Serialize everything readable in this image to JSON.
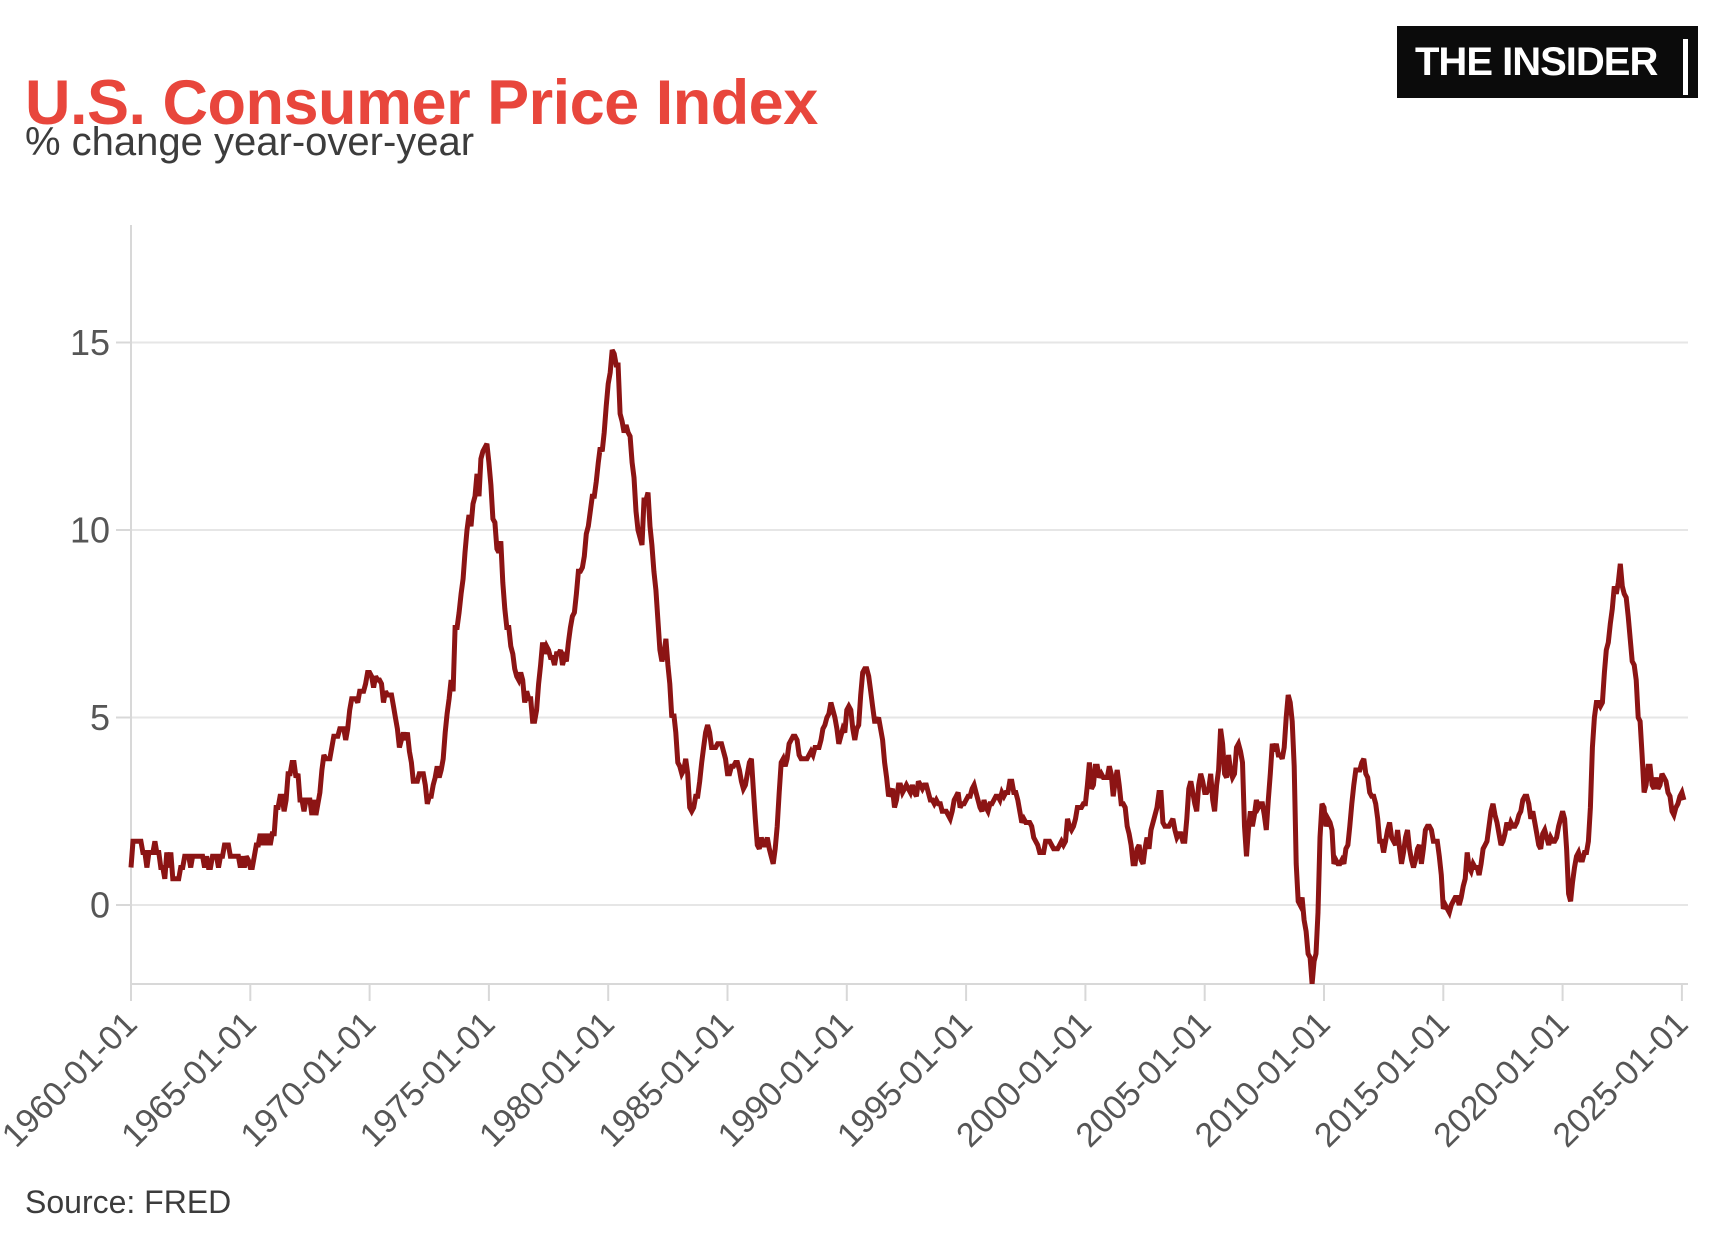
{
  "header": {
    "title": "U.S. Consumer Price Index",
    "subtitle": "% change year-over-year",
    "logo_text": "THE INSIDER"
  },
  "footer": {
    "source": "Source: FRED"
  },
  "colors": {
    "title": "#e8463c",
    "text": "#3c3c3c",
    "tick_label": "#565656",
    "line": "#8c1414",
    "grid": "#e6e6e6",
    "axis": "#d8d8d8",
    "logo_bg": "#0b0b0b",
    "logo_text": "#ffffff",
    "background": "#ffffff"
  },
  "chart_data": {
    "type": "line",
    "title": "U.S. Consumer Price Index",
    "subtitle": "% change year-over-year",
    "series_name": "CPI, % change year-over-year",
    "source": "FRED",
    "frequency": "monthly",
    "x_start": "1960-01-01",
    "x_end": "2025-02-01",
    "x_range": [
      "1960-01-01",
      "2025-02-01"
    ],
    "y_range": [
      -2.1,
      18.1
    ],
    "y_ticks": [
      0,
      5,
      10,
      15
    ],
    "x_tick_labels": [
      "1960-01-01",
      "1965-01-01",
      "1970-01-01",
      "1975-01-01",
      "1980-01-01",
      "1985-01-01",
      "1990-01-01",
      "1995-01-01",
      "2000-01-01",
      "2005-01-01",
      "2010-01-01",
      "2015-01-01",
      "2020-01-01",
      "2025-01-01"
    ],
    "x_tick_step_years": 5,
    "grid": "horizontal-only",
    "legend": "none",
    "values": [
      1.0,
      1.7,
      1.7,
      1.7,
      1.7,
      1.7,
      1.4,
      1.4,
      1.0,
      1.4,
      1.4,
      1.4,
      1.7,
      1.4,
      1.4,
      1.0,
      1.0,
      0.7,
      1.4,
      1.0,
      1.4,
      0.7,
      0.7,
      0.7,
      0.7,
      1.0,
      1.0,
      1.3,
      1.3,
      1.3,
      1.0,
      1.3,
      1.3,
      1.3,
      1.3,
      1.3,
      1.3,
      1.0,
      1.3,
      1.0,
      1.0,
      1.3,
      1.3,
      1.3,
      1.0,
      1.3,
      1.3,
      1.6,
      1.6,
      1.6,
      1.3,
      1.3,
      1.3,
      1.3,
      1.3,
      1.0,
      1.3,
      1.0,
      1.3,
      1.2,
      1.0,
      1.0,
      1.3,
      1.6,
      1.6,
      1.9,
      1.6,
      1.9,
      1.6,
      1.9,
      1.6,
      1.9,
      1.9,
      2.6,
      2.6,
      2.9,
      2.9,
      2.5,
      2.8,
      3.5,
      3.5,
      3.8,
      3.8,
      3.4,
      3.5,
      2.8,
      2.8,
      2.5,
      2.8,
      2.8,
      2.8,
      2.4,
      2.8,
      2.4,
      2.7,
      3.0,
      3.6,
      4.0,
      3.9,
      3.9,
      3.9,
      4.2,
      4.5,
      4.5,
      4.5,
      4.7,
      4.7,
      4.7,
      4.4,
      4.7,
      5.2,
      5.5,
      5.5,
      5.5,
      5.4,
      5.7,
      5.7,
      5.7,
      5.9,
      6.2,
      6.2,
      6.1,
      5.8,
      6.1,
      6.0,
      6.0,
      5.9,
      5.4,
      5.7,
      5.6,
      5.6,
      5.6,
      5.3,
      5.0,
      4.7,
      4.2,
      4.4,
      4.6,
      4.4,
      4.6,
      4.1,
      3.8,
      3.3,
      3.3,
      3.3,
      3.5,
      3.5,
      3.5,
      3.2,
      2.7,
      2.9,
      2.9,
      3.2,
      3.4,
      3.7,
      3.4,
      3.6,
      3.9,
      4.6,
      5.1,
      5.5,
      6.0,
      5.7,
      7.4,
      7.4,
      7.8,
      8.3,
      8.7,
      9.4,
      10.0,
      10.4,
      10.1,
      10.7,
      10.9,
      11.5,
      10.9,
      11.9,
      12.1,
      12.2,
      12.3,
      11.8,
      11.2,
      10.3,
      10.2,
      9.5,
      9.4,
      9.7,
      8.6,
      7.9,
      7.4,
      7.4,
      6.9,
      6.7,
      6.3,
      6.1,
      6.0,
      6.2,
      6.0,
      5.4,
      5.7,
      5.5,
      5.5,
      4.9,
      4.9,
      5.2,
      5.9,
      6.4,
      7.0,
      6.7,
      6.9,
      6.8,
      6.6,
      6.6,
      6.4,
      6.7,
      6.7,
      6.8,
      6.4,
      6.6,
      6.5,
      7.0,
      7.4,
      7.7,
      7.8,
      8.3,
      8.9,
      8.9,
      9.0,
      9.3,
      9.9,
      10.1,
      10.5,
      10.9,
      10.9,
      11.3,
      11.8,
      12.2,
      12.1,
      12.6,
      13.3,
      13.9,
      14.2,
      14.8,
      14.7,
      14.4,
      14.4,
      13.1,
      12.9,
      12.6,
      12.8,
      12.6,
      12.5,
      11.8,
      11.4,
      10.5,
      10.0,
      9.8,
      9.6,
      10.8,
      10.8,
      11.0,
      10.1,
      9.6,
      8.9,
      8.4,
      7.6,
      6.8,
      6.5,
      6.7,
      7.1,
      6.4,
      5.9,
      5.0,
      5.1,
      4.6,
      3.8,
      3.7,
      3.5,
      3.6,
      3.9,
      3.5,
      2.6,
      2.5,
      2.6,
      2.9,
      2.9,
      3.3,
      3.8,
      4.2,
      4.6,
      4.8,
      4.6,
      4.2,
      4.2,
      4.2,
      4.3,
      4.3,
      4.3,
      4.1,
      3.9,
      3.5,
      3.5,
      3.7,
      3.7,
      3.8,
      3.8,
      3.6,
      3.3,
      3.1,
      3.2,
      3.5,
      3.8,
      3.9,
      3.1,
      2.3,
      1.6,
      1.5,
      1.8,
      1.6,
      1.6,
      1.8,
      1.5,
      1.3,
      1.1,
      1.5,
      2.1,
      3.0,
      3.8,
      3.9,
      3.7,
      3.9,
      4.3,
      4.4,
      4.5,
      4.5,
      4.4,
      4.0,
      3.9,
      3.9,
      3.9,
      3.9,
      4.0,
      4.1,
      4.0,
      4.2,
      4.2,
      4.2,
      4.4,
      4.7,
      4.8,
      5.0,
      5.1,
      5.4,
      5.2,
      5.0,
      4.7,
      4.3,
      4.5,
      4.7,
      4.6,
      5.2,
      5.3,
      5.2,
      4.7,
      4.4,
      4.7,
      4.8,
      5.6,
      6.2,
      6.3,
      6.3,
      6.1,
      5.7,
      5.3,
      4.9,
      4.9,
      5.0,
      4.7,
      4.4,
      3.8,
      3.4,
      2.9,
      3.0,
      3.1,
      2.6,
      2.8,
      3.2,
      3.2,
      3.0,
      3.1,
      3.2,
      3.1,
      3.0,
      3.2,
      3.0,
      2.9,
      3.3,
      3.2,
      3.1,
      3.2,
      3.2,
      3.0,
      2.8,
      2.8,
      2.7,
      2.8,
      2.7,
      2.7,
      2.5,
      2.5,
      2.5,
      2.4,
      2.3,
      2.5,
      2.8,
      2.9,
      3.0,
      2.6,
      2.7,
      2.7,
      2.8,
      2.9,
      2.9,
      3.1,
      3.2,
      3.0,
      2.8,
      2.6,
      2.5,
      2.8,
      2.6,
      2.5,
      2.7,
      2.7,
      2.8,
      2.9,
      2.9,
      2.8,
      3.0,
      2.9,
      3.0,
      3.0,
      3.3,
      3.3,
      3.0,
      3.0,
      2.8,
      2.5,
      2.2,
      2.3,
      2.2,
      2.2,
      2.2,
      2.1,
      1.8,
      1.7,
      1.6,
      1.4,
      1.4,
      1.4,
      1.7,
      1.7,
      1.7,
      1.6,
      1.5,
      1.5,
      1.5,
      1.6,
      1.7,
      1.6,
      1.7,
      2.3,
      2.1,
      2.0,
      2.1,
      2.3,
      2.6,
      2.6,
      2.6,
      2.7,
      2.7,
      3.2,
      3.8,
      3.1,
      3.2,
      3.7,
      3.7,
      3.4,
      3.5,
      3.4,
      3.4,
      3.4,
      3.7,
      3.5,
      2.9,
      3.3,
      3.6,
      3.2,
      2.7,
      2.7,
      2.6,
      2.1,
      1.9,
      1.6,
      1.1,
      1.1,
      1.5,
      1.6,
      1.2,
      1.1,
      1.5,
      1.8,
      1.5,
      2.0,
      2.2,
      2.4,
      2.6,
      3.0,
      3.0,
      2.2,
      2.1,
      2.1,
      2.1,
      2.2,
      2.3,
      2.0,
      1.8,
      1.9,
      1.9,
      1.7,
      1.7,
      2.3,
      3.1,
      3.3,
      3.0,
      2.7,
      2.5,
      3.2,
      3.5,
      3.3,
      3.0,
      3.0,
      3.1,
      3.5,
      2.8,
      2.5,
      3.2,
      3.6,
      4.7,
      4.3,
      3.5,
      3.4,
      4.0,
      3.6,
      3.4,
      3.5,
      4.2,
      4.3,
      4.1,
      3.8,
      2.1,
      1.3,
      2.0,
      2.5,
      2.1,
      2.4,
      2.8,
      2.6,
      2.7,
      2.7,
      2.4,
      2.0,
      2.8,
      3.5,
      4.3,
      4.1,
      4.3,
      4.0,
      4.0,
      3.9,
      4.2,
      5.0,
      5.6,
      5.4,
      4.9,
      3.7,
      1.1,
      0.1,
      0.0,
      0.2,
      -0.4,
      -0.7,
      -1.3,
      -1.4,
      -2.1,
      -1.5,
      -1.3,
      -0.2,
      1.8,
      2.7,
      2.6,
      2.1,
      2.3,
      2.2,
      2.0,
      1.1,
      1.2,
      1.1,
      1.1,
      1.2,
      1.1,
      1.5,
      1.6,
      2.1,
      2.7,
      3.2,
      3.6,
      3.6,
      3.6,
      3.8,
      3.9,
      3.5,
      3.4,
      3.0,
      2.9,
      2.9,
      2.7,
      2.3,
      1.7,
      1.7,
      1.4,
      1.7,
      2.0,
      2.2,
      1.8,
      1.7,
      1.6,
      2.0,
      1.5,
      1.1,
      1.4,
      1.8,
      2.0,
      1.5,
      1.2,
      1.0,
      1.2,
      1.5,
      1.6,
      1.1,
      1.5,
      2.0,
      2.1,
      2.1,
      2.0,
      1.7,
      1.7,
      1.7,
      1.3,
      0.8,
      -0.1,
      0.0,
      -0.1,
      -0.2,
      0.0,
      0.1,
      0.2,
      0.2,
      0.0,
      0.2,
      0.5,
      0.7,
      1.4,
      1.0,
      0.9,
      1.1,
      1.0,
      1.0,
      0.8,
      1.1,
      1.5,
      1.6,
      1.7,
      2.1,
      2.5,
      2.7,
      2.4,
      2.2,
      1.9,
      1.6,
      1.7,
      1.9,
      2.2,
      2.0,
      2.2,
      2.1,
      2.1,
      2.2,
      2.4,
      2.5,
      2.8,
      2.9,
      2.9,
      2.7,
      2.3,
      2.5,
      2.2,
      1.9,
      1.6,
      1.5,
      1.9,
      2.0,
      1.8,
      1.6,
      1.8,
      1.7,
      1.7,
      1.8,
      2.1,
      2.3,
      2.5,
      2.3,
      1.5,
      0.3,
      0.1,
      0.6,
      1.0,
      1.3,
      1.4,
      1.2,
      1.2,
      1.4,
      1.4,
      1.7,
      2.6,
      4.2,
      5.0,
      5.4,
      5.4,
      5.3,
      5.4,
      6.2,
      6.8,
      7.0,
      7.5,
      7.9,
      8.5,
      8.3,
      8.6,
      9.1,
      8.5,
      8.3,
      8.2,
      7.7,
      7.1,
      6.5,
      6.4,
      6.0,
      5.0,
      4.9,
      4.0,
      3.0,
      3.2,
      3.7,
      3.7,
      3.2,
      3.1,
      3.4,
      3.1,
      3.2,
      3.5,
      3.4,
      3.3,
      3.0,
      2.9,
      2.5,
      2.4,
      2.6,
      2.7,
      2.9,
      3.0,
      2.8
    ]
  }
}
